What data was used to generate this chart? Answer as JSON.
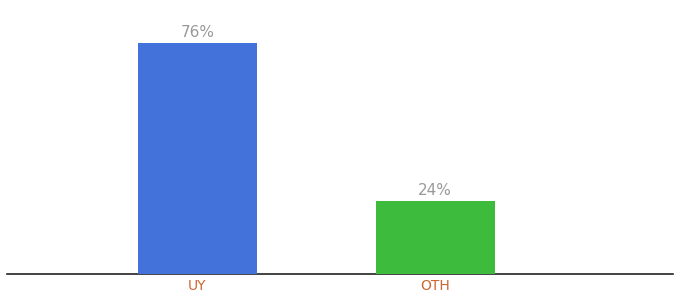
{
  "categories": [
    "UY",
    "OTH"
  ],
  "values": [
    76,
    24
  ],
  "bar_colors": [
    "#4472db",
    "#3dbb3d"
  ],
  "label_color": "#999999",
  "axis_label_color": "#cc6633",
  "bar_width": 0.5,
  "ylim": [
    0,
    88
  ],
  "background_color": "#ffffff",
  "annotation_fontsize": 11,
  "tick_fontsize": 10,
  "bar_positions": [
    1,
    2
  ],
  "xlim": [
    0.2,
    3.0
  ]
}
